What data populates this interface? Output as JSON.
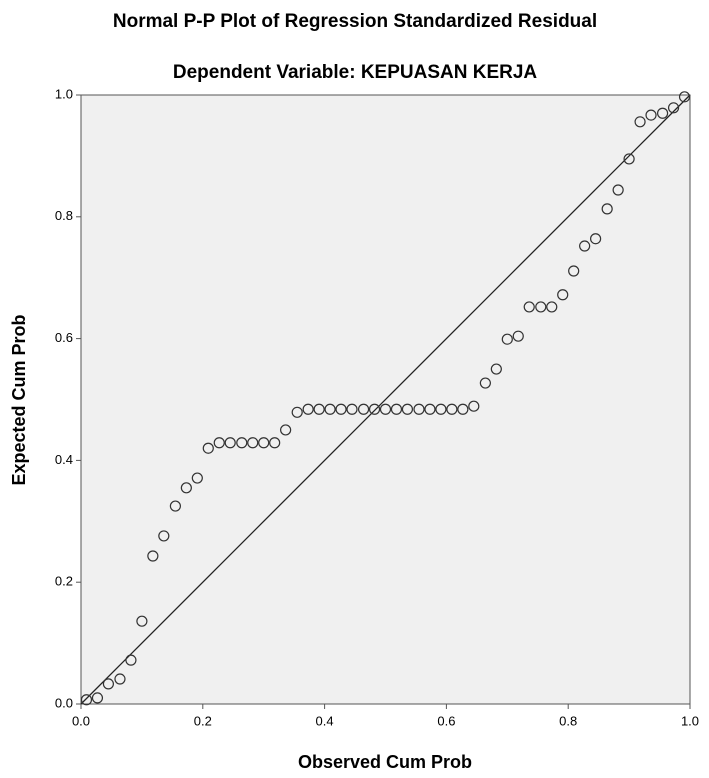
{
  "chart_data": {
    "type": "scatter",
    "title": "Normal P-P Plot of Regression Standardized Residual",
    "subtitle": "Dependent Variable: KEPUASAN KERJA",
    "x_label": "Observed Cum Prob",
    "y_label": "Expected Cum Prob",
    "xlim": [
      0,
      1
    ],
    "ylim": [
      0,
      1
    ],
    "xticks": [
      {
        "value": 0,
        "label": "0.0"
      },
      0.2,
      0.4,
      0.6,
      0.8,
      {
        "value": 1,
        "label": "1.0"
      }
    ],
    "yticks": [
      {
        "value": 0,
        "label": "0.0"
      },
      0.2,
      0.4,
      0.6,
      0.8,
      {
        "value": 1,
        "label": "1.0"
      }
    ],
    "grid": false,
    "reference_line": true,
    "color": "#333333",
    "series": [
      {
        "color": "#333333",
        "x": [
          0.009,
          0.027,
          0.045,
          0.064,
          0.082,
          0.1,
          0.118,
          0.136,
          0.155,
          0.173,
          0.191,
          0.209,
          0.227,
          0.245,
          0.264,
          0.282,
          0.3,
          0.318,
          0.336,
          0.355,
          0.373,
          0.391,
          0.409,
          0.427,
          0.445,
          0.464,
          0.482,
          0.5,
          0.518,
          0.536,
          0.555,
          0.573,
          0.591,
          0.609,
          0.627,
          0.645,
          0.664,
          0.682,
          0.7,
          0.718,
          0.736,
          0.755,
          0.773,
          0.791,
          0.809,
          0.827,
          0.845,
          0.864,
          0.882,
          0.9,
          0.918,
          0.936,
          0.955,
          0.973,
          0.991
        ],
        "values": [
          0.007,
          0.01,
          0.033,
          0.041,
          0.072,
          0.136,
          0.243,
          0.276,
          0.325,
          0.355,
          0.371,
          0.42,
          0.429,
          0.429,
          0.429,
          0.429,
          0.429,
          0.429,
          0.45,
          0.479,
          0.484,
          0.484,
          0.484,
          0.484,
          0.484,
          0.484,
          0.484,
          0.484,
          0.484,
          0.484,
          0.484,
          0.484,
          0.484,
          0.484,
          0.484,
          0.489,
          0.527,
          0.55,
          0.599,
          0.604,
          0.652,
          0.652,
          0.652,
          0.672,
          0.711,
          0.752,
          0.764,
          0.813,
          0.844,
          0.895,
          0.956,
          0.967,
          0.97,
          0.979,
          0.997
        ]
      }
    ]
  }
}
